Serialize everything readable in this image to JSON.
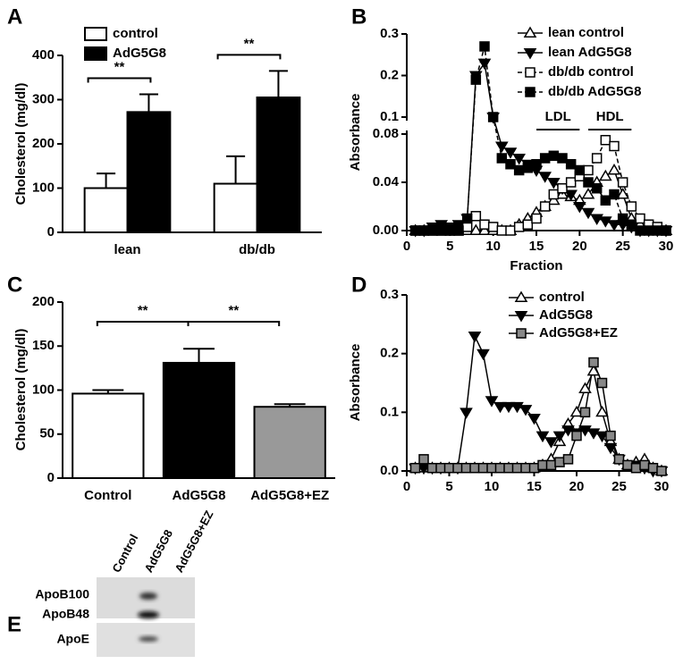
{
  "chart_data": [
    {
      "type": "bar",
      "panel": "A",
      "ylabel": "Cholesterol (mg/dl)",
      "categories": [
        "lean",
        "db/db"
      ],
      "series": [
        {
          "name": "control",
          "color": "#ffffff",
          "values": [
            100,
            110
          ],
          "errors": [
            33,
            62
          ]
        },
        {
          "name": "AdG5G8",
          "color": "#000000",
          "values": [
            272,
            305
          ],
          "errors": [
            40,
            60
          ]
        }
      ],
      "ylim": [
        0,
        400
      ],
      "yticks": [
        0,
        100,
        200,
        300,
        400
      ],
      "legend": "upper left",
      "annotations": [
        "**",
        "**"
      ]
    },
    {
      "type": "line",
      "panel": "B",
      "xlabel": "Fraction",
      "ylabel": "Absorbance",
      "x": [
        1,
        2,
        3,
        4,
        5,
        6,
        7,
        8,
        9,
        10,
        11,
        12,
        13,
        14,
        15,
        16,
        17,
        18,
        19,
        20,
        21,
        22,
        23,
        24,
        25,
        26,
        27,
        28,
        29,
        30
      ],
      "xlim": [
        0,
        30
      ],
      "xticks": [
        0,
        5,
        10,
        15,
        20,
        25,
        30
      ],
      "ylim": [
        0,
        0.3
      ],
      "ybreak": [
        0.08,
        0.1
      ],
      "yticks": [
        {
          "value": 0,
          "label": "0.00"
        },
        {
          "value": 0.04,
          "label": "0.04"
        },
        {
          "value": 0.08,
          "label": "0.08"
        },
        0.1,
        0.2,
        0.3
      ],
      "legend": "upper right",
      "annotations": [
        {
          "text": "LDL",
          "x": [
            15,
            20
          ]
        },
        {
          "text": "HDL",
          "x": [
            21,
            26
          ]
        }
      ],
      "series": [
        {
          "name": "lean control",
          "color": "#000000",
          "marker": "triangle-up",
          "fill": "#ffffff",
          "dash": false,
          "values": [
            0,
            0,
            0,
            0,
            0,
            0,
            0,
            0,
            0,
            0,
            0,
            0,
            0.005,
            0.01,
            0.015,
            0.02,
            0.025,
            0.03,
            0.028,
            0.025,
            0.03,
            0.04,
            0.045,
            0.05,
            0.03,
            0.01,
            0.005,
            0,
            0,
            0
          ]
        },
        {
          "name": "lean AdG5G8",
          "color": "#000000",
          "marker": "triangle-down",
          "fill": "#000000",
          "dash": false,
          "values": [
            0,
            0,
            0.003,
            0.005,
            0.003,
            0.005,
            0.01,
            0.2,
            0.23,
            0.1,
            0.07,
            0.065,
            0.06,
            0.055,
            0.05,
            0.045,
            0.04,
            0.035,
            0.03,
            0.02,
            0.015,
            0.01,
            0.008,
            0.005,
            0.005,
            0.003,
            0,
            0,
            0,
            0
          ]
        },
        {
          "name": "db/db control",
          "color": "#000000",
          "marker": "square",
          "fill": "#ffffff",
          "dash": true,
          "values": [
            0,
            0,
            0,
            0,
            0,
            0,
            0.003,
            0.012,
            0.005,
            0.003,
            0,
            0,
            0.003,
            0.005,
            0.01,
            0.02,
            0.03,
            0.035,
            0.04,
            0.045,
            0.05,
            0.06,
            0.075,
            0.07,
            0.04,
            0.02,
            0.01,
            0.005,
            0.003,
            0
          ]
        },
        {
          "name": "db/db AdG5G8",
          "color": "#000000",
          "marker": "square",
          "fill": "#000000",
          "dash": true,
          "values": [
            0,
            0,
            0,
            0,
            0,
            0,
            0.01,
            0.19,
            0.27,
            0.1,
            0.06,
            0.055,
            0.05,
            0.052,
            0.055,
            0.06,
            0.062,
            0.06,
            0.055,
            0.05,
            0.04,
            0.035,
            0.025,
            0.03,
            0.01,
            0.005,
            0,
            0,
            0,
            0
          ]
        }
      ]
    },
    {
      "type": "bar",
      "panel": "C",
      "ylabel": "Cholesterol (mg/dl)",
      "categories": [
        "Control",
        "AdG5G8",
        "AdG5G8+EZ"
      ],
      "values": [
        96,
        131,
        81
      ],
      "errors": [
        4,
        16,
        3
      ],
      "colors": [
        "#ffffff",
        "#000000",
        "#999999"
      ],
      "ylim": [
        0,
        200
      ],
      "yticks": [
        0,
        50,
        100,
        150,
        200
      ],
      "annotations": [
        "**",
        "**"
      ]
    },
    {
      "type": "line",
      "panel": "D",
      "ylabel": "Absorbance",
      "x": [
        1,
        2,
        3,
        4,
        5,
        6,
        7,
        8,
        9,
        10,
        11,
        12,
        13,
        14,
        15,
        16,
        17,
        18,
        19,
        20,
        21,
        22,
        23,
        24,
        25,
        26,
        27,
        28,
        29,
        30
      ],
      "xlim": [
        0,
        30
      ],
      "xticks": [
        0,
        5,
        10,
        15,
        20,
        25,
        30
      ],
      "ylim": [
        0,
        0.3
      ],
      "yticks": [
        {
          "value": 0,
          "label": "0.0"
        },
        0.1,
        0.2,
        0.3
      ],
      "legend": "upper center",
      "series": [
        {
          "name": "control",
          "color": "#000000",
          "marker": "triangle-up",
          "fill": "#ffffff",
          "dash": false,
          "values": [
            0.005,
            0.005,
            0.005,
            0.005,
            0.005,
            0.005,
            0.005,
            0.005,
            0.005,
            0.005,
            0.005,
            0.005,
            0.005,
            0.005,
            0.005,
            0.01,
            0.02,
            0.05,
            0.08,
            0.1,
            0.14,
            0.17,
            0.1,
            0.05,
            0.02,
            0.01,
            0.015,
            0.02,
            0.005,
            0
          ]
        },
        {
          "name": "AdG5G8",
          "color": "#000000",
          "marker": "triangle-down",
          "fill": "#000000",
          "dash": false,
          "values": [
            0.005,
            0.005,
            0.005,
            0.005,
            0.005,
            0.005,
            0.1,
            0.23,
            0.2,
            0.12,
            0.11,
            0.11,
            0.11,
            0.105,
            0.09,
            0.06,
            0.05,
            0.06,
            0.07,
            0.065,
            0.07,
            0.065,
            0.06,
            0.04,
            0.02,
            0.01,
            0.01,
            0.005,
            0,
            0
          ]
        },
        {
          "name": "AdG5G8+EZ",
          "color": "#000000",
          "marker": "square",
          "fill": "#888888",
          "dash": false,
          "values": [
            0.005,
            0.02,
            0.005,
            0.005,
            0.005,
            0.005,
            0.005,
            0.005,
            0.005,
            0.005,
            0.005,
            0.005,
            0.005,
            0.005,
            0.005,
            0.01,
            0.01,
            0.015,
            0.02,
            0.06,
            0.1,
            0.185,
            0.15,
            0.06,
            0.02,
            0.01,
            0.005,
            0.01,
            0.005,
            0
          ]
        }
      ]
    }
  ],
  "blot": {
    "panel": "E",
    "lanes": [
      "Control",
      "AdG5G8",
      "AdG5G8+EZ"
    ],
    "bands": [
      "ApoB100",
      "ApoB48",
      "ApoE"
    ]
  }
}
